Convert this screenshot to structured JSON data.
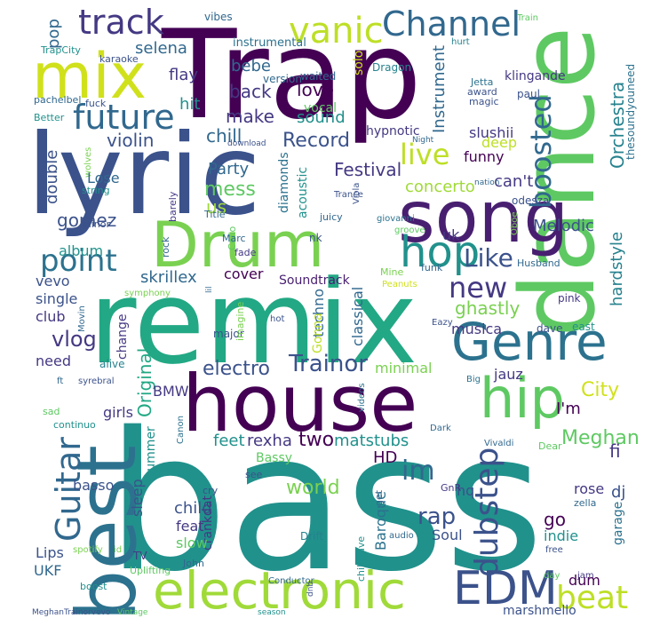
{
  "cloud": {
    "words": [
      {
        "text": "bass",
        "color": "#21918c"
      },
      {
        "text": "remix",
        "color": "#22a884"
      },
      {
        "text": "Trap",
        "color": "#440154"
      },
      {
        "text": "lyric",
        "color": "#3b528b"
      },
      {
        "text": "dance",
        "color": "#5ec962"
      },
      {
        "text": "house",
        "color": "#440154"
      },
      {
        "text": "best",
        "color": "#2c728e"
      },
      {
        "text": "song",
        "color": "#481f70"
      },
      {
        "text": "Drum",
        "color": "#7ad151"
      },
      {
        "text": "electronic",
        "color": "#a0da39"
      },
      {
        "text": "mix",
        "color": "#d0e11c"
      },
      {
        "text": "Genre",
        "color": "#2c728e"
      },
      {
        "text": "hip",
        "color": "#5ec962"
      },
      {
        "text": "hop",
        "color": "#21918c"
      },
      {
        "text": "EDM",
        "color": "#3b528b"
      },
      {
        "text": "Channel",
        "color": "#31688e"
      },
      {
        "text": "track",
        "color": "#443983"
      },
      {
        "text": "vanic",
        "color": "#bddf26"
      },
      {
        "text": "future",
        "color": "#31688e"
      },
      {
        "text": "point",
        "color": "#2c728e"
      },
      {
        "text": "Guitar",
        "color": "#31688e"
      },
      {
        "text": "dubstep",
        "color": "#3b528b"
      },
      {
        "text": "boosted",
        "color": "#31688e"
      },
      {
        "text": "beat",
        "color": "#bddf26"
      },
      {
        "text": "new",
        "color": "#443983"
      },
      {
        "text": "live",
        "color": "#bddf26"
      },
      {
        "text": "Like",
        "color": "#3b528b"
      },
      {
        "text": "im",
        "color": "#31688e"
      },
      {
        "text": "Trainor",
        "color": "#3b528b"
      },
      {
        "text": "Orchestra",
        "color": "#26828e"
      },
      {
        "text": "Instrument",
        "color": "#31688e"
      },
      {
        "text": "Record",
        "color": "#3b528b"
      },
      {
        "text": "Meghan",
        "color": "#5ec962"
      },
      {
        "text": "City",
        "color": "#d0e11c"
      },
      {
        "text": "world",
        "color": "#7ad151"
      },
      {
        "text": "rap",
        "color": "#3b528b"
      },
      {
        "text": "vlog",
        "color": "#443983"
      },
      {
        "text": "electro",
        "color": "#3b528b"
      },
      {
        "text": "Original",
        "color": "#22a884"
      },
      {
        "text": "Festival",
        "color": "#443983"
      },
      {
        "text": "concerto",
        "color": "#a0da39"
      },
      {
        "text": "hardstyle",
        "color": "#26828e"
      },
      {
        "text": "ghastly",
        "color": "#7ad151"
      },
      {
        "text": "double",
        "color": "#3b528b"
      },
      {
        "text": "gomez",
        "color": "#3b528b"
      },
      {
        "text": "mess",
        "color": "#5ec962"
      },
      {
        "text": "violin",
        "color": "#3b528b"
      },
      {
        "text": "Party",
        "color": "#31688e"
      },
      {
        "text": "us",
        "color": "#a0da39"
      },
      {
        "text": "back",
        "color": "#443983"
      },
      {
        "text": "make",
        "color": "#443983"
      },
      {
        "text": "chill",
        "color": "#31688e"
      },
      {
        "text": "love",
        "color": "#440154"
      },
      {
        "text": "sound",
        "color": "#21918c"
      },
      {
        "text": "hit",
        "color": "#21918c"
      },
      {
        "text": "bebe",
        "color": "#31688e"
      },
      {
        "text": "flay",
        "color": "#443983"
      },
      {
        "text": "selena",
        "color": "#31688e"
      },
      {
        "text": "pop",
        "color": "#31688e"
      },
      {
        "text": "solo",
        "color": "#d0e11c"
      },
      {
        "text": "vocal",
        "color": "#5ec962"
      },
      {
        "text": "waited",
        "color": "#31688e"
      },
      {
        "text": "version",
        "color": "#31688e"
      },
      {
        "text": "instrumental",
        "color": "#2c728e"
      },
      {
        "text": "vibes",
        "color": "#31688e"
      },
      {
        "text": "TrapCity",
        "color": "#21918c"
      },
      {
        "text": "karaoke",
        "color": "#3b528b"
      },
      {
        "text": "Dragon",
        "color": "#26828e"
      },
      {
        "text": "Train",
        "color": "#5ec962"
      },
      {
        "text": "hurt",
        "color": "#26828e"
      },
      {
        "text": "Jetta",
        "color": "#2c728e"
      },
      {
        "text": "award",
        "color": "#3b528b"
      },
      {
        "text": "magic",
        "color": "#3b528b"
      },
      {
        "text": "klingande",
        "color": "#443983"
      },
      {
        "text": "paul",
        "color": "#3b528b"
      },
      {
        "text": "thesoundyouneed",
        "color": "#2c728e"
      },
      {
        "text": "pachelbel",
        "color": "#31688e"
      },
      {
        "text": "fuck",
        "color": "#3b528b"
      },
      {
        "text": "Better",
        "color": "#21918c"
      },
      {
        "text": "hypnotic",
        "color": "#443983"
      },
      {
        "text": "download",
        "color": "#3b528b"
      },
      {
        "text": "Night",
        "color": "#31688e"
      },
      {
        "text": "slushii",
        "color": "#443983"
      },
      {
        "text": "deep",
        "color": "#bddf26"
      },
      {
        "text": "funny",
        "color": "#440154"
      },
      {
        "text": "can't",
        "color": "#443983"
      },
      {
        "text": "nation",
        "color": "#31688e"
      },
      {
        "text": "odesza",
        "color": "#3b528b"
      },
      {
        "text": "wolves",
        "color": "#7ad151"
      },
      {
        "text": "string",
        "color": "#21918c"
      },
      {
        "text": "Lose",
        "color": "#31688e"
      },
      {
        "text": "diamonds",
        "color": "#2c728e"
      },
      {
        "text": "acoustic",
        "color": "#21918c"
      },
      {
        "text": "barely",
        "color": "#443983"
      },
      {
        "text": "Viola",
        "color": "#3b528b"
      },
      {
        "text": "Trance",
        "color": "#3b528b"
      },
      {
        "text": "Melodic",
        "color": "#3b528b"
      },
      {
        "text": "minor",
        "color": "#3b528b"
      },
      {
        "text": "giovanni",
        "color": "#2c728e"
      },
      {
        "text": "juicy",
        "color": "#31688e"
      },
      {
        "text": "Title",
        "color": "#31688e"
      },
      {
        "text": "album",
        "color": "#21918c"
      },
      {
        "text": "rock",
        "color": "#31688e"
      },
      {
        "text": "Cello",
        "color": "#5ec962"
      },
      {
        "text": "Marc",
        "color": "#31688e"
      },
      {
        "text": "fade",
        "color": "#443983"
      },
      {
        "text": "groove",
        "color": "#5ec962"
      },
      {
        "text": "Oboe",
        "color": "#7ad151"
      },
      {
        "text": "uk",
        "color": "#443983"
      },
      {
        "text": "nk",
        "color": "#3b528b"
      },
      {
        "text": "skrillex",
        "color": "#31688e"
      },
      {
        "text": "vevo",
        "color": "#3b528b"
      },
      {
        "text": "cover",
        "color": "#440154"
      },
      {
        "text": "single",
        "color": "#3b528b"
      },
      {
        "text": "Soundtrack",
        "color": "#481f70"
      },
      {
        "text": "Mine",
        "color": "#7ad151"
      },
      {
        "text": "Peanuts",
        "color": "#d0e11c"
      },
      {
        "text": "funk",
        "color": "#31688e"
      },
      {
        "text": "Husband",
        "color": "#31688e"
      },
      {
        "text": "pink",
        "color": "#443983"
      },
      {
        "text": "symphony",
        "color": "#7ad151"
      },
      {
        "text": "lil",
        "color": "#31688e"
      },
      {
        "text": "club",
        "color": "#443983"
      },
      {
        "text": "techno",
        "color": "#31688e"
      },
      {
        "text": "classical",
        "color": "#31688e"
      },
      {
        "text": "musica",
        "color": "#443983"
      },
      {
        "text": "Gonna",
        "color": "#bddf26"
      },
      {
        "text": "Eazy",
        "color": "#3b528b"
      },
      {
        "text": "dave",
        "color": "#3b528b"
      },
      {
        "text": "east",
        "color": "#21918c"
      },
      {
        "text": "Movin",
        "color": "#31688e"
      },
      {
        "text": "hot",
        "color": "#3b528b"
      },
      {
        "text": "change",
        "color": "#443983"
      },
      {
        "text": "major",
        "color": "#3b528b"
      },
      {
        "text": "imagine",
        "color": "#7ad151"
      },
      {
        "text": "alive",
        "color": "#26828e"
      },
      {
        "text": "need",
        "color": "#443983"
      },
      {
        "text": "minimal",
        "color": "#7ad151"
      },
      {
        "text": "jauz",
        "color": "#443983"
      },
      {
        "text": "ft",
        "color": "#31688e"
      },
      {
        "text": "syrebral",
        "color": "#3b528b"
      },
      {
        "text": "BMW",
        "color": "#443983"
      },
      {
        "text": "Big",
        "color": "#2c728e"
      },
      {
        "text": "I'm",
        "color": "#440154"
      },
      {
        "text": "girls",
        "color": "#443983"
      },
      {
        "text": "videos",
        "color": "#2c728e"
      },
      {
        "text": "sad",
        "color": "#5ec962"
      },
      {
        "text": "continuo",
        "color": "#21918c"
      },
      {
        "text": "rexha",
        "color": "#443983"
      },
      {
        "text": "feet",
        "color": "#21918c"
      },
      {
        "text": "two",
        "color": "#440154"
      },
      {
        "text": "matstubs",
        "color": "#21918c"
      },
      {
        "text": "Canon",
        "color": "#2c728e"
      },
      {
        "text": "Dark",
        "color": "#31688e"
      },
      {
        "text": "Vivaldi",
        "color": "#31688e"
      },
      {
        "text": "Dear",
        "color": "#5ec962"
      },
      {
        "text": "fi",
        "color": "#443983"
      },
      {
        "text": "HD",
        "color": "#440154"
      },
      {
        "text": "summer",
        "color": "#21918c"
      },
      {
        "text": "Bassy",
        "color": "#5ec962"
      },
      {
        "text": "basso",
        "color": "#3b528b"
      },
      {
        "text": "sleep",
        "color": "#3b528b"
      },
      {
        "text": "child",
        "color": "#3b528b"
      },
      {
        "text": "crankdat",
        "color": "#443983"
      },
      {
        "text": "cry",
        "color": "#3b528b"
      },
      {
        "text": "see",
        "color": "#3b528b"
      },
      {
        "text": "feat",
        "color": "#443983"
      },
      {
        "text": "slow",
        "color": "#5ec962"
      },
      {
        "text": "hq",
        "color": "#3b528b"
      },
      {
        "text": "GnR",
        "color": "#443983"
      },
      {
        "text": "rose",
        "color": "#443983"
      },
      {
        "text": "zella",
        "color": "#31688e"
      },
      {
        "text": "dj",
        "color": "#3b528b"
      },
      {
        "text": "Baroque",
        "color": "#2c728e"
      },
      {
        "text": "go",
        "color": "#440154"
      },
      {
        "text": "get",
        "color": "#31688e"
      },
      {
        "text": "indie",
        "color": "#21918c"
      },
      {
        "text": "free",
        "color": "#3b528b"
      },
      {
        "text": "Lips",
        "color": "#3b528b"
      },
      {
        "text": "TV",
        "color": "#443983"
      },
      {
        "text": "Drift",
        "color": "#26828e"
      },
      {
        "text": "audio",
        "color": "#31688e"
      },
      {
        "text": "Soul",
        "color": "#3b528b"
      },
      {
        "text": "garage",
        "color": "#2c728e"
      },
      {
        "text": "spotify",
        "color": "#7ad151"
      },
      {
        "text": "id",
        "color": "#7ad151"
      },
      {
        "text": "John",
        "color": "#31688e"
      },
      {
        "text": "chillwave",
        "color": "#21918c"
      },
      {
        "text": "UKF",
        "color": "#31688e"
      },
      {
        "text": "Uplifting",
        "color": "#5ec962"
      },
      {
        "text": "Conductor",
        "color": "#31688e"
      },
      {
        "text": "day",
        "color": "#5ec962"
      },
      {
        "text": "jam",
        "color": "#443983"
      },
      {
        "text": "dum",
        "color": "#440154"
      },
      {
        "text": "boost",
        "color": "#21918c"
      },
      {
        "text": "dnb",
        "color": "#3b528b"
      },
      {
        "text": "marshmello",
        "color": "#3b528b"
      },
      {
        "text": "MeghanTrainorvevo",
        "color": "#3b528b"
      },
      {
        "text": "Vintage",
        "color": "#5ec962"
      },
      {
        "text": "season",
        "color": "#21918c"
      }
    ]
  }
}
